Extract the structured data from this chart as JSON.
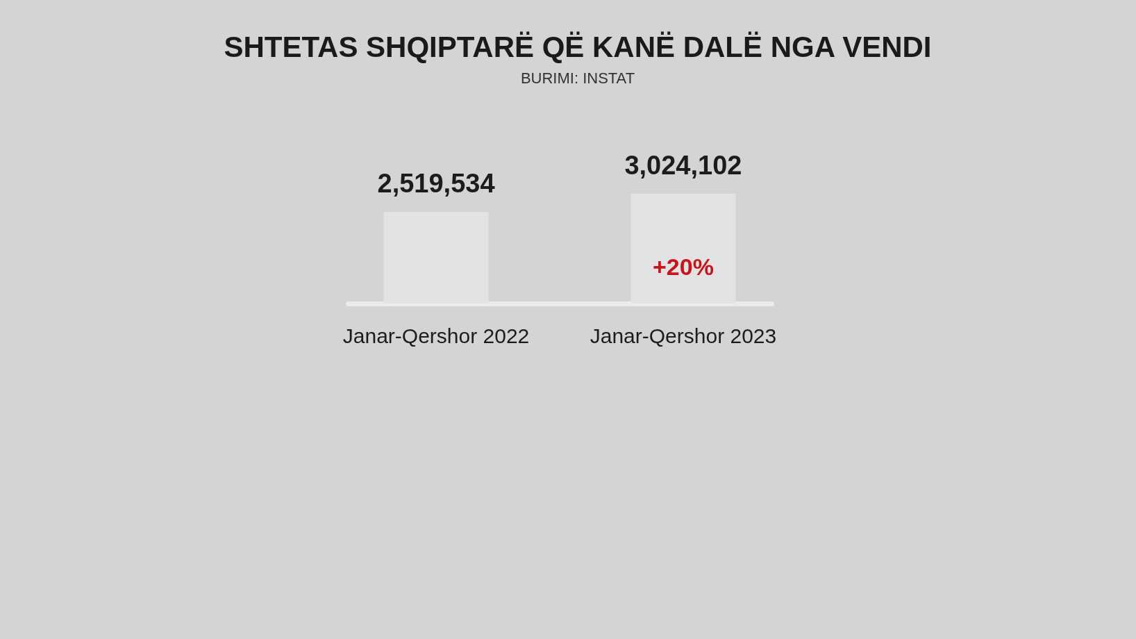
{
  "chart_data": {
    "type": "bar",
    "title": "SHTETAS SHQIPTARË QË KANË DALË NGA VENDI",
    "annotations": [
      "BURIMI: INSTAT",
      "+20%"
    ],
    "categories": [
      "Janar-Qershor 2022",
      "Janar-Qershor 2023"
    ],
    "values": [
      2519534,
      3024102
    ],
    "value_labels": [
      "2,519,534",
      "3,024,102"
    ],
    "color": "#e3e3e3",
    "tick_labels": "x"
  }
}
